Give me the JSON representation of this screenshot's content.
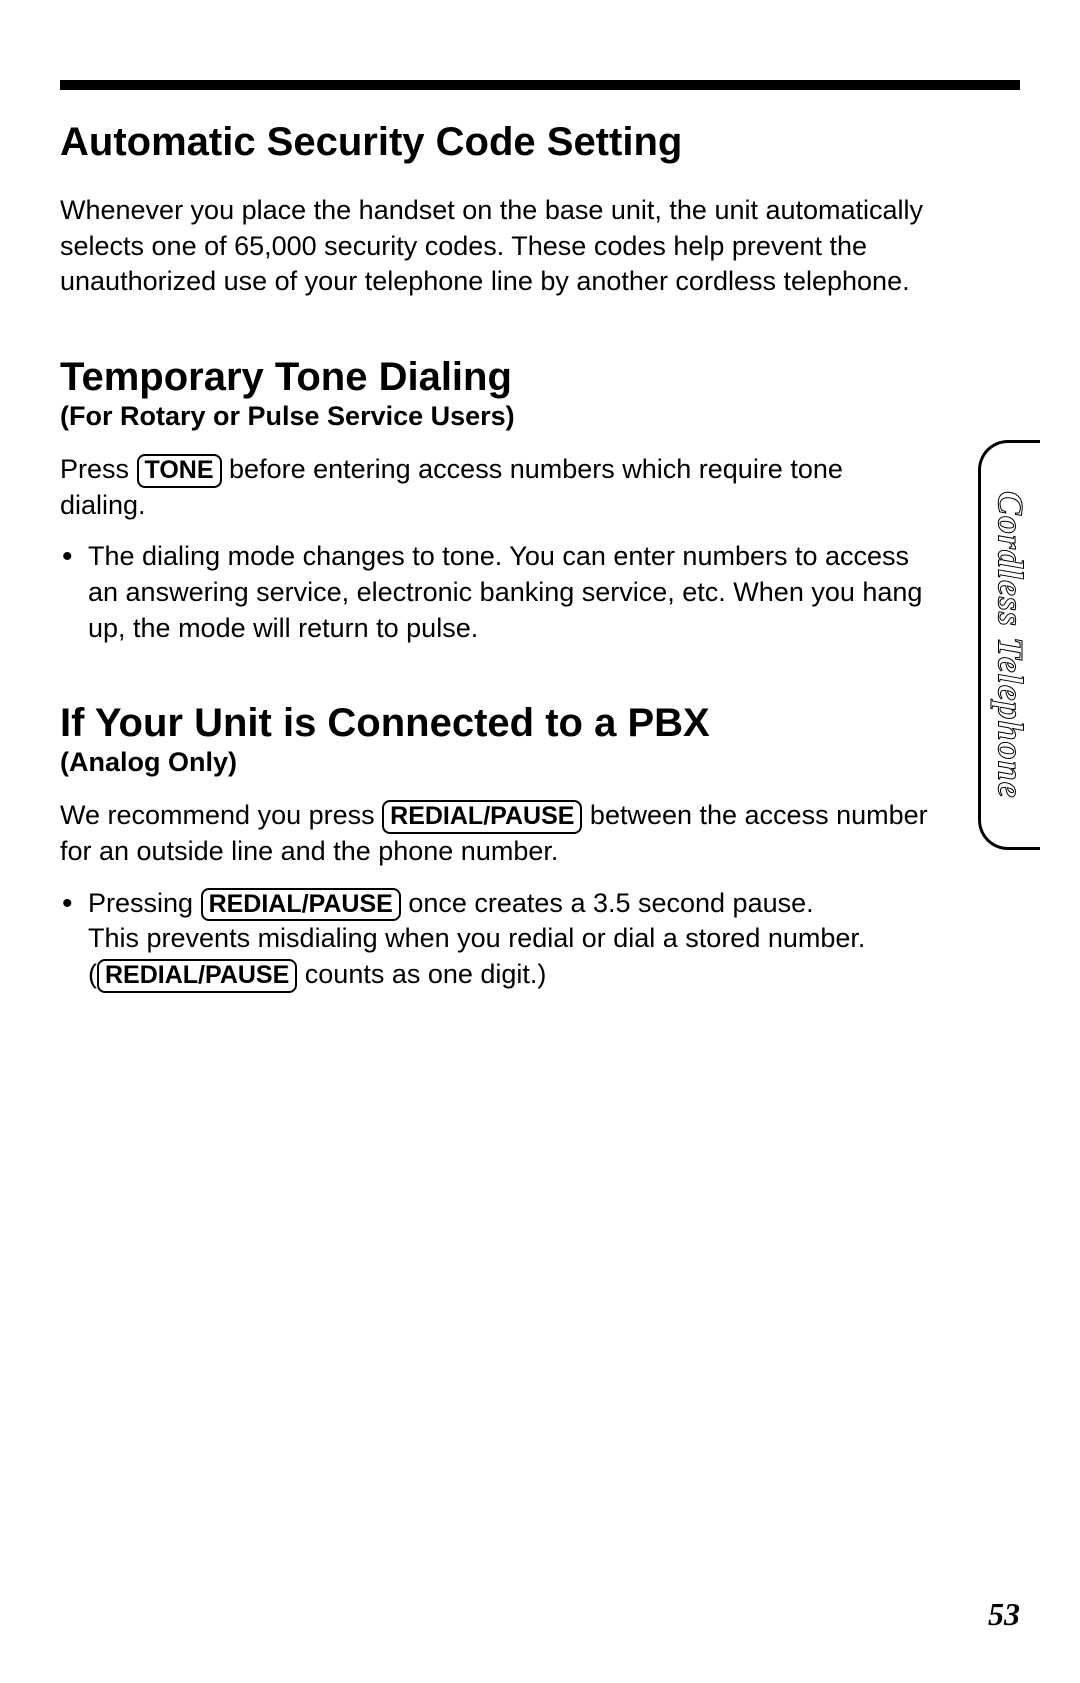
{
  "section1": {
    "title": "Automatic Security Code Setting",
    "para1": "Whenever you place the handset on the base unit, the unit automatically selects one of 65,000 security codes. These codes help prevent the unauthorized use of your telephone line by another cordless telephone."
  },
  "section2": {
    "title": "Temporary Tone Dialing",
    "subtitle": "(For Rotary or Pulse Service Users)",
    "para1_pre": "Press ",
    "key1": "TONE",
    "para1_post": " before entering access numbers which require tone dialing.",
    "bullet1": "The dialing mode changes to tone. You can enter numbers to access an answering service, electronic banking service, etc. When you hang up, the mode will return to pulse."
  },
  "section3": {
    "title": "If Your Unit is Connected to a PBX",
    "subtitle": "(Analog Only)",
    "para1_pre": "We recommend you press ",
    "key1": "REDIAL/PAUSE",
    "para1_post": " between the access number for an outside line and the phone number.",
    "bullet1_pre": "Pressing ",
    "bullet1_key": "REDIAL/PAUSE",
    "bullet1_mid": " once creates a 3.5 second pause.\nThis prevents misdialing when you redial or dial a stored number.\n(",
    "bullet1_key2": "REDIAL/PAUSE",
    "bullet1_post": " counts as one digit.)"
  },
  "side_tab": "Cordless Telephone",
  "page_number": "53"
}
